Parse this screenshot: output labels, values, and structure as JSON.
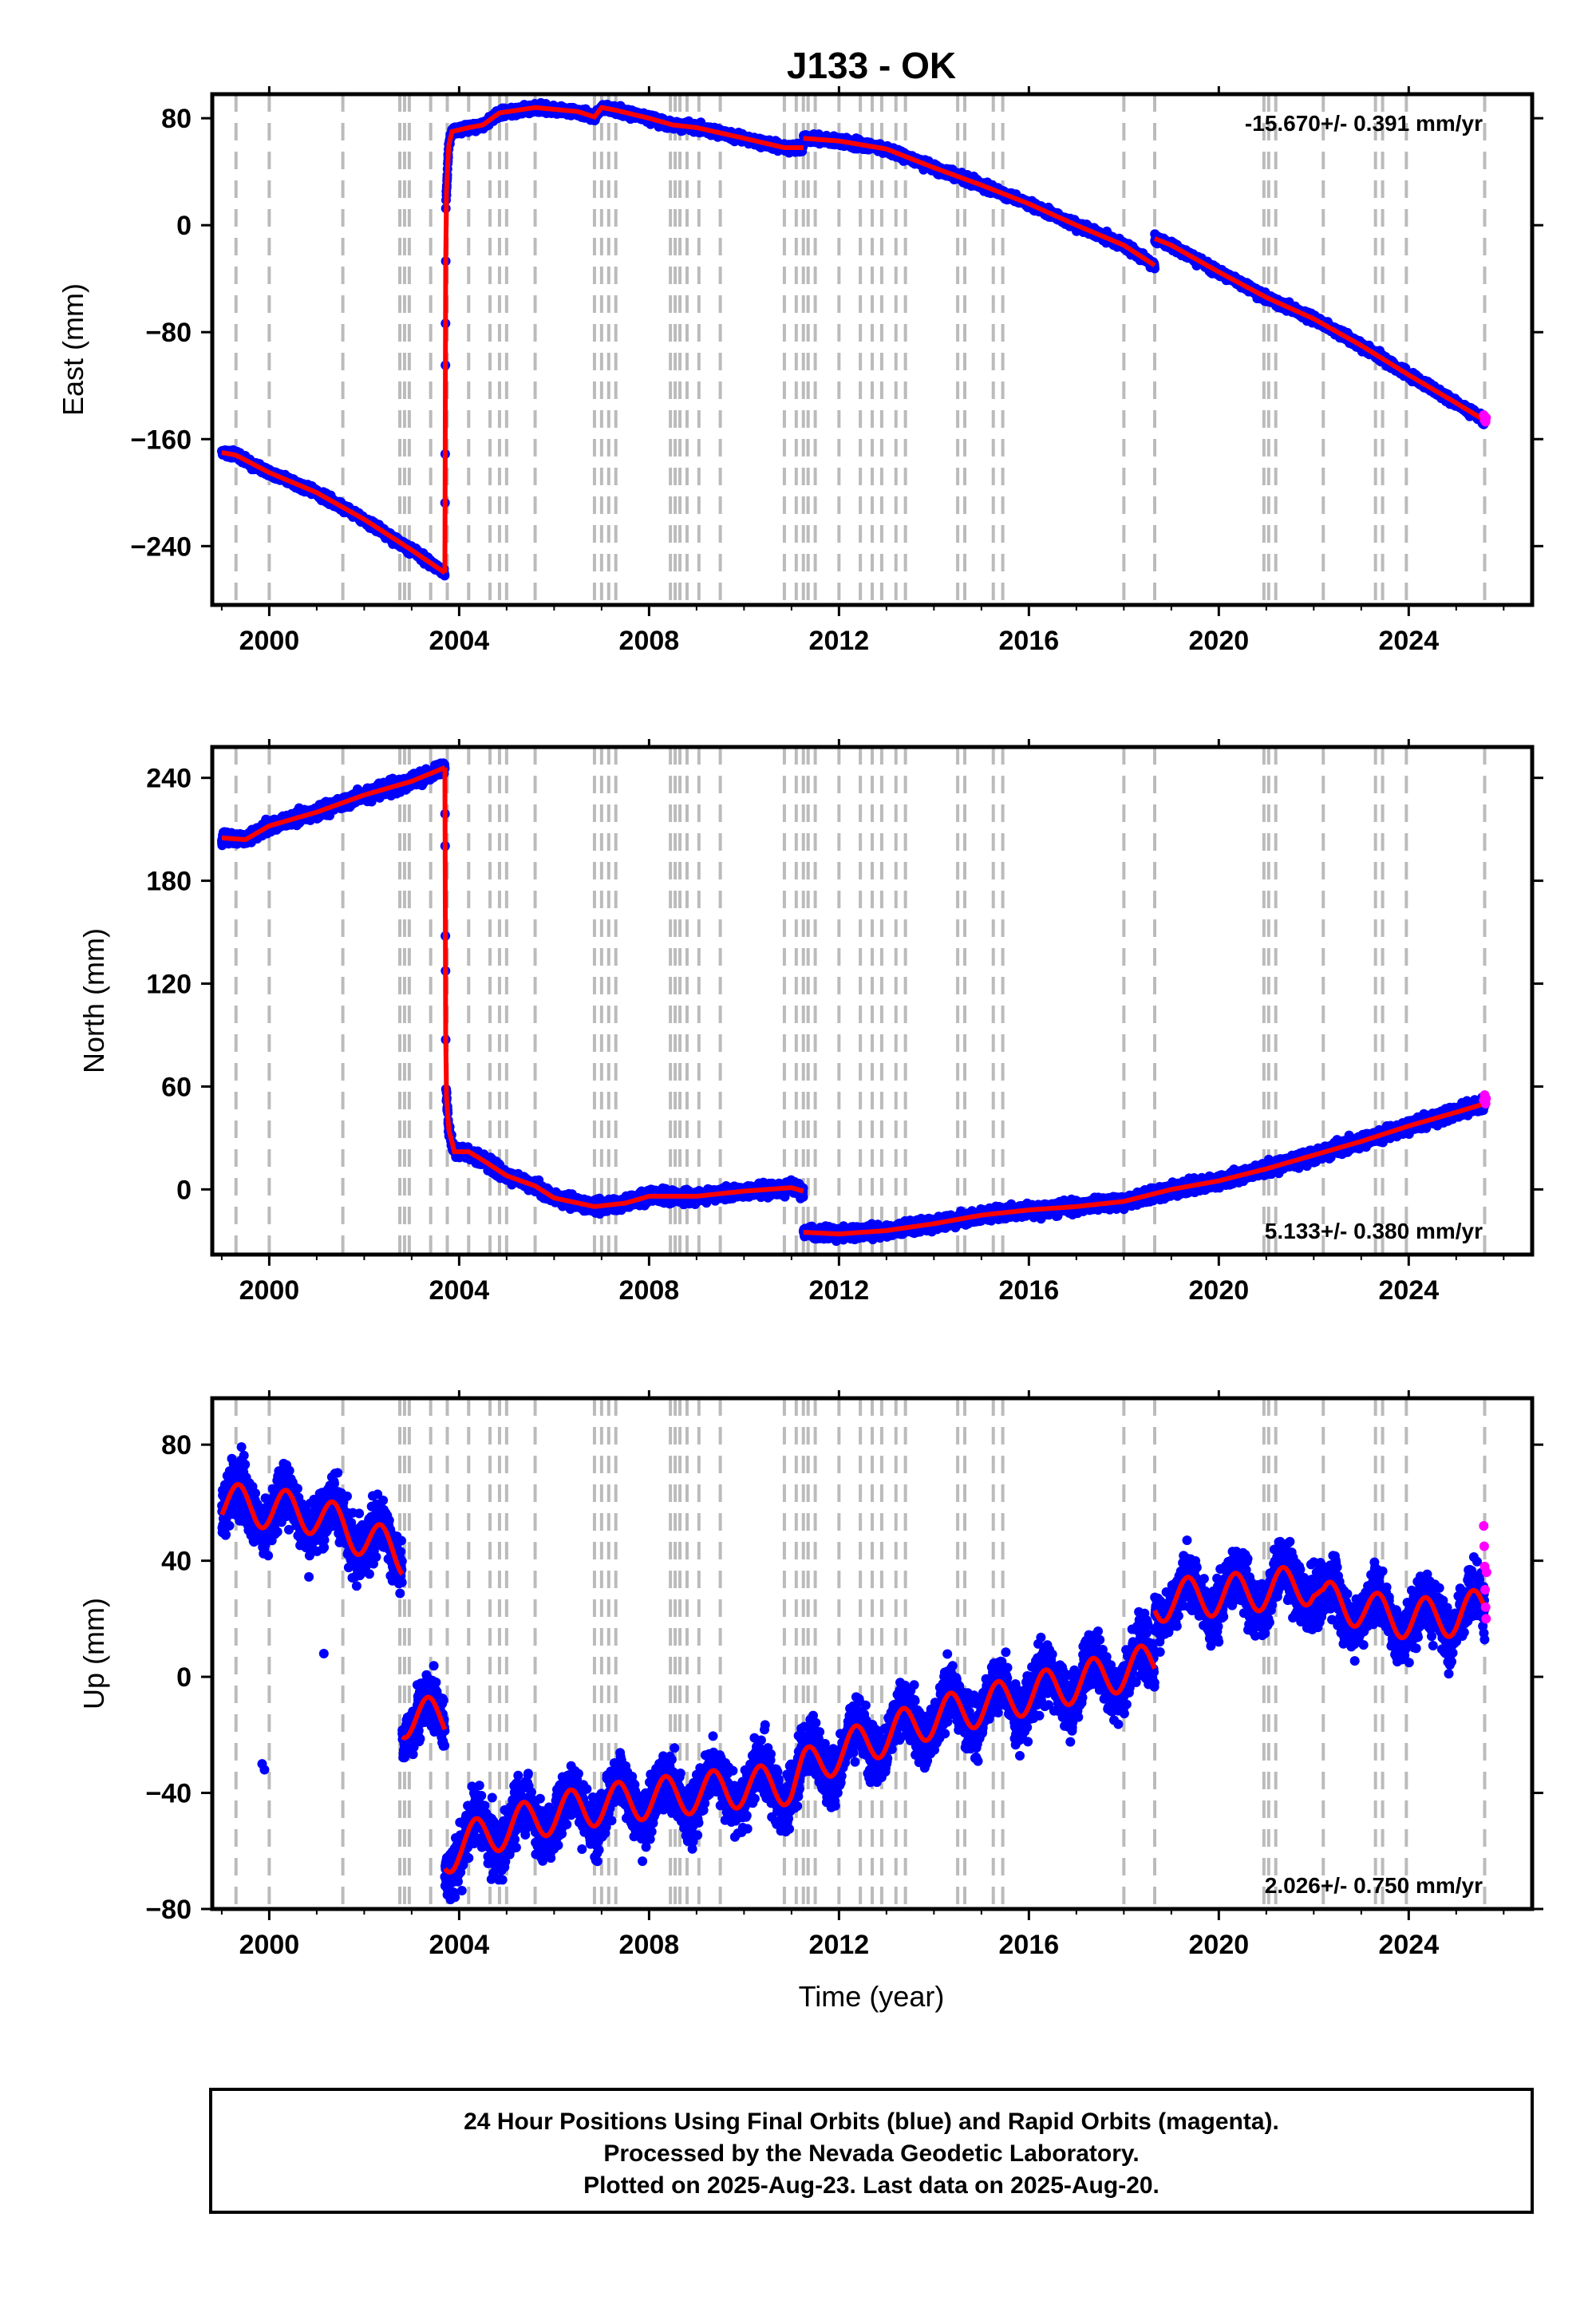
{
  "chart_data": {
    "title": "J133 - OK",
    "type": "scatter",
    "xlabel": "Time (year)",
    "x_ticks": [
      2000,
      2004,
      2008,
      2012,
      2016,
      2020,
      2024
    ],
    "xlim": [
      1998.8,
      2026.6
    ],
    "event_lines_year": [
      1999.3,
      2000.0,
      2001.55,
      2002.75,
      2002.85,
      2002.95,
      2003.4,
      2003.75,
      2004.2,
      2004.65,
      2004.85,
      2005.0,
      2005.6,
      2006.85,
      2007.0,
      2007.15,
      2007.3,
      2008.45,
      2008.55,
      2008.65,
      2008.8,
      2009.05,
      2009.5,
      2010.85,
      2011.1,
      2011.25,
      2011.35,
      2011.5,
      2012.0,
      2012.45,
      2012.7,
      2012.9,
      2013.2,
      2013.4,
      2014.5,
      2014.65,
      2015.25,
      2015.45,
      2018.0,
      2018.65,
      2020.95,
      2021.05,
      2021.2,
      2022.2,
      2023.3,
      2023.45,
      2023.95,
      2025.6
    ],
    "panels": [
      {
        "ylabel": "East (mm)",
        "ylim": [
          -284,
          98
        ],
        "y_ticks": [
          80,
          0,
          -80,
          -160,
          -240
        ],
        "rate_label": "-15.670+/- 0.391 mm/yr",
        "rate_position": "top-right",
        "model": {
          "segments": [
            [
              [
                1999.0,
                -170
              ],
              [
                1999.3,
                -172
              ],
              [
                2000.0,
                -185
              ],
              [
                2001.0,
                -200
              ],
              [
                2002.0,
                -220
              ],
              [
                2003.0,
                -243
              ],
              [
                2003.7,
                -260
              ]
            ],
            [
              [
                2003.7,
                -260
              ],
              [
                2003.72,
                15
              ],
              [
                2003.78,
                60
              ],
              [
                2003.85,
                70
              ],
              [
                2004.2,
                73
              ],
              [
                2004.5,
                75
              ],
              [
                2004.85,
                84
              ],
              [
                2005.6,
                88
              ],
              [
                2006.5,
                85
              ],
              [
                2006.85,
                81
              ],
              [
                2007.0,
                88
              ],
              [
                2007.3,
                86
              ],
              [
                2008.0,
                80
              ],
              [
                2008.5,
                75
              ],
              [
                2009.0,
                73
              ],
              [
                2010.0,
                65
              ],
              [
                2010.85,
                58
              ],
              [
                2011.25,
                58
              ]
            ],
            [
              [
                2011.25,
                65
              ],
              [
                2012.0,
                63
              ],
              [
                2013.0,
                57
              ],
              [
                2014.0,
                43
              ],
              [
                2015.0,
                30
              ],
              [
                2016.0,
                16
              ],
              [
                2017.0,
                0
              ],
              [
                2018.0,
                -15
              ],
              [
                2018.65,
                -30
              ]
            ],
            [
              [
                2018.65,
                -10
              ],
              [
                2019.0,
                -15
              ],
              [
                2020.0,
                -35
              ],
              [
                2021.0,
                -54
              ],
              [
                2022.0,
                -70
              ],
              [
                2023.0,
                -90
              ],
              [
                2024.0,
                -112
              ],
              [
                2025.0,
                -133
              ],
              [
                2025.6,
                -146
              ]
            ]
          ],
          "scatter_noise_mm": 2.5
        },
        "rapid_points": [
          [
            2025.58,
            -142
          ],
          [
            2025.6,
            -146
          ],
          [
            2025.62,
            -147
          ],
          [
            2025.63,
            -144
          ]
        ]
      },
      {
        "ylabel": "North (mm)",
        "ylim": [
          -38,
          258
        ],
        "y_ticks": [
          240,
          180,
          120,
          60,
          0
        ],
        "rate_label": "5.133+/- 0.380 mm/yr",
        "rate_position": "bottom-right",
        "model": {
          "segments": [
            [
              [
                1999.0,
                205
              ],
              [
                1999.5,
                204
              ],
              [
                2000.0,
                212
              ],
              [
                2001.0,
                220
              ],
              [
                2002.0,
                230
              ],
              [
                2003.0,
                238
              ],
              [
                2003.7,
                246
              ]
            ],
            [
              [
                2003.7,
                246
              ],
              [
                2003.72,
                60
              ],
              [
                2003.78,
                35
              ],
              [
                2003.9,
                22
              ],
              [
                2004.2,
                22
              ],
              [
                2004.5,
                17
              ],
              [
                2005.0,
                8
              ],
              [
                2005.6,
                2
              ],
              [
                2006.0,
                -5
              ],
              [
                2006.85,
                -10
              ],
              [
                2007.5,
                -8
              ],
              [
                2008.0,
                -4
              ],
              [
                2009.0,
                -4
              ],
              [
                2010.0,
                -1
              ],
              [
                2011.0,
                1
              ],
              [
                2011.25,
                -1
              ]
            ],
            [
              [
                2011.25,
                -25
              ],
              [
                2012.0,
                -26
              ],
              [
                2013.0,
                -24
              ],
              [
                2014.0,
                -20
              ],
              [
                2015.0,
                -15
              ],
              [
                2016.0,
                -12
              ],
              [
                2017.0,
                -10
              ],
              [
                2018.0,
                -7
              ],
              [
                2019.0,
                0
              ],
              [
                2020.0,
                5
              ],
              [
                2021.0,
                12
              ],
              [
                2022.0,
                20
              ],
              [
                2023.0,
                28
              ],
              [
                2024.0,
                37
              ],
              [
                2025.0,
                45
              ],
              [
                2025.6,
                50
              ]
            ]
          ],
          "scatter_noise_mm": 3
        },
        "rapid_points": [
          [
            2025.58,
            52
          ],
          [
            2025.6,
            55
          ],
          [
            2025.62,
            50
          ],
          [
            2025.63,
            53
          ]
        ]
      },
      {
        "ylabel": "Up (mm)",
        "ylim": [
          -80,
          96
        ],
        "y_ticks": [
          80,
          40,
          0,
          -40,
          -80
        ],
        "rate_label": "2.026+/- 0.750 mm/yr",
        "rate_position": "bottom-right",
        "model": {
          "segments": [
            [
              [
                1999.0,
                60
              ],
              [
                2000.0,
                58
              ],
              [
                2001.0,
                56
              ],
              [
                2002.0,
                48
              ],
              [
                2002.8,
                42
              ]
            ],
            [
              [
                2002.8,
                -14
              ],
              [
                2003.7,
                -14
              ]
            ],
            [
              [
                2003.7,
                -62
              ],
              [
                2004.0,
                -58
              ],
              [
                2005.0,
                -52
              ],
              [
                2006.0,
                -47
              ],
              [
                2007.0,
                -44
              ],
              [
                2008.0,
                -42
              ],
              [
                2009.0,
                -40
              ],
              [
                2010.0,
                -38
              ],
              [
                2011.0,
                -37
              ],
              [
                2011.25,
                -32
              ],
              [
                2012.0,
                -26
              ],
              [
                2013.0,
                -20
              ],
              [
                2014.0,
                -14
              ],
              [
                2015.0,
                -10
              ],
              [
                2016.0,
                -6
              ],
              [
                2017.0,
                -2
              ],
              [
                2018.0,
                2
              ],
              [
                2018.65,
                5
              ]
            ],
            [
              [
                2018.65,
                25
              ],
              [
                2019.0,
                27
              ],
              [
                2020.0,
                28
              ],
              [
                2021.0,
                30
              ],
              [
                2022.0,
                32
              ],
              [
                2022.2,
                26
              ],
              [
                2023.0,
                24
              ],
              [
                2023.3,
                22
              ],
              [
                2024.0,
                20
              ],
              [
                2025.0,
                21
              ],
              [
                2025.6,
                24
              ]
            ]
          ],
          "seasonal_amp_mm": 7,
          "scatter_noise_mm": 8,
          "outliers": [
            [
              1999.85,
              -30
            ],
            [
              1999.9,
              -32
            ],
            [
              2001.15,
              8
            ]
          ]
        },
        "rapid_points": [
          [
            2025.58,
            52
          ],
          [
            2025.59,
            45
          ],
          [
            2025.6,
            38
          ],
          [
            2025.61,
            30
          ],
          [
            2025.62,
            24
          ],
          [
            2025.63,
            20
          ],
          [
            2025.64,
            36
          ]
        ]
      }
    ],
    "series": [
      {
        "name": "Final Orbits (blue)",
        "color": "#0000ff"
      },
      {
        "name": "Rapid Orbits (magenta)",
        "color": "#ff00ff"
      },
      {
        "name": "model",
        "color": "#ff0000"
      }
    ],
    "event_line_color": "#bbbbbb"
  },
  "footer": {
    "line1": "24 Hour Positions Using Final Orbits (blue) and Rapid Orbits (magenta).",
    "line2": "Processed by the Nevada Geodetic Laboratory.",
    "line3": "Plotted on 2025-Aug-23. Last data on 2025-Aug-20."
  }
}
